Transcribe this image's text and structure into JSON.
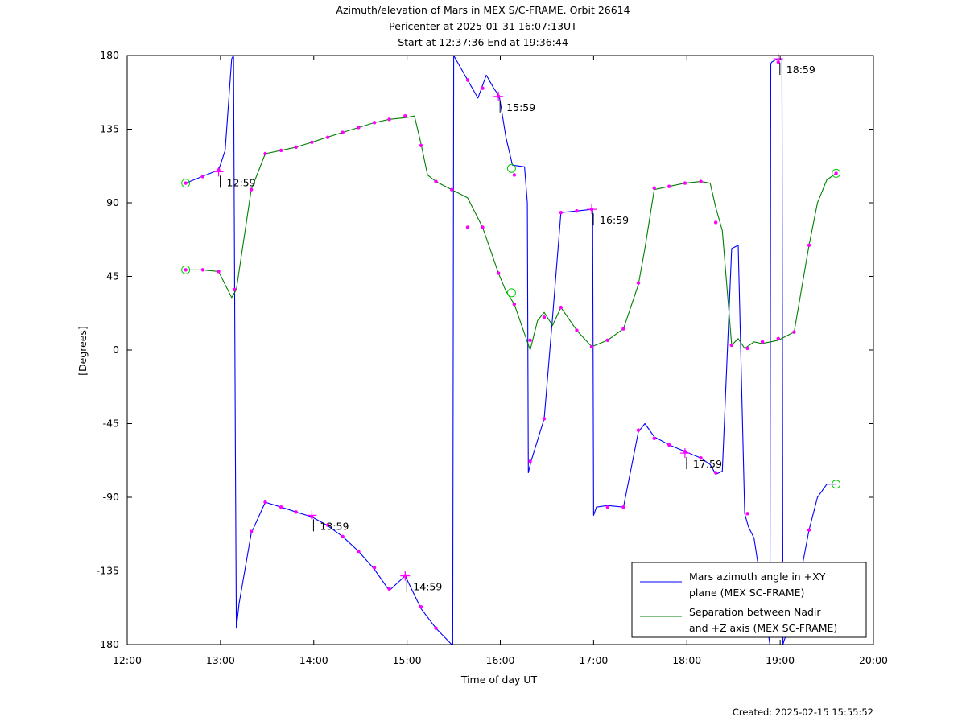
{
  "chart_data": {
    "type": "line",
    "title_lines": [
      "Azimuth/elevation of Mars in MEX S/C-FRAME.  Orbit 26614",
      "Pericenter at 2025-01-31 16:07:13UT",
      "Start at 12:37:36 End at 19:36:44"
    ],
    "xlabel": "Time of day UT",
    "ylabel": "[Degrees]",
    "xlim": [
      12,
      20
    ],
    "ylim": [
      -180,
      180
    ],
    "x_ticks": [
      12,
      13,
      14,
      15,
      16,
      17,
      18,
      19,
      20
    ],
    "x_tick_labels": [
      "12:00",
      "13:00",
      "14:00",
      "15:00",
      "16:00",
      "17:00",
      "18:00",
      "19:00",
      "20:00"
    ],
    "y_ticks": [
      180,
      135,
      90,
      45,
      0,
      -45,
      -90,
      -135,
      -180
    ],
    "y_tick_labels": [
      "180",
      "135",
      "90",
      "45",
      "0",
      "-45",
      "-90",
      "-135",
      "-180"
    ],
    "grid": false,
    "legend_position": "bottom-right",
    "time_annotations": [
      {
        "label": "12:59",
        "x": 12.98,
        "y": 109
      },
      {
        "label": "13:59",
        "x": 13.98,
        "y": -101
      },
      {
        "label": "14:59",
        "x": 14.98,
        "y": -138
      },
      {
        "label": "15:59",
        "x": 15.98,
        "y": 155
      },
      {
        "label": "16:59",
        "x": 16.98,
        "y": 86
      },
      {
        "label": "17:59",
        "x": 17.98,
        "y": -63
      },
      {
        "label": "18:59",
        "x": 18.98,
        "y": 178
      }
    ],
    "series": [
      {
        "name": "Mars azimuth angle in +XY plane (MEX SC-FRAME)",
        "legend_lines": [
          "Mars azimuth angle in +XY",
          "plane (MEX SC-FRAME)"
        ],
        "color": "#0000ff",
        "x": [
          12.627,
          12.8,
          12.98,
          13.05,
          13.12,
          13.14,
          13.16,
          13.17,
          13.2,
          13.33,
          13.48,
          13.65,
          13.81,
          13.98,
          14.14,
          14.31,
          14.48,
          14.65,
          14.81,
          14.98,
          15.15,
          15.31,
          15.48,
          15.49,
          15.5,
          15.65,
          15.76,
          15.85,
          15.93,
          15.99,
          16.06,
          16.13,
          16.26,
          16.29,
          16.3,
          16.33,
          16.47,
          16.56,
          16.65,
          16.82,
          16.99,
          17.0,
          17.03,
          17.15,
          17.32,
          17.48,
          17.55,
          17.65,
          17.81,
          17.98,
          18.15,
          18.25,
          18.31,
          18.38,
          18.48,
          18.55,
          18.62,
          18.66,
          18.72,
          18.8,
          18.89,
          18.9,
          18.91,
          18.97,
          19.02,
          19.03,
          19.04,
          19.1,
          19.22,
          19.31,
          19.4,
          19.5,
          19.6
        ],
        "y": [
          102,
          106,
          110,
          122,
          178,
          180,
          -60,
          -170,
          -155,
          -112,
          -93,
          -96,
          -99,
          -102,
          -107,
          -114,
          -123,
          -134,
          -147,
          -138,
          -158,
          -170,
          -180,
          -180,
          180,
          165,
          154,
          168,
          160,
          155,
          130,
          113,
          112,
          90,
          -75,
          -68,
          -42,
          20,
          84,
          85,
          86,
          -101,
          -96,
          -95,
          -96,
          -50,
          -45,
          -53,
          -58,
          -62,
          -66,
          -70,
          -76,
          -74,
          62,
          64,
          -100,
          -108,
          -115,
          -145,
          -180,
          175,
          176,
          178,
          178,
          -180,
          -178,
          -168,
          -137,
          -110,
          -90,
          -82,
          -82
        ]
      },
      {
        "name": "Separation between Nadir and +Z axis (MEX SC-FRAME)",
        "legend_lines": [
          "Separation between Nadir",
          "and +Z axis (MEX SC-FRAME)"
        ],
        "color": "#008000",
        "x": [
          12.627,
          12.8,
          12.98,
          13.05,
          13.12,
          13.17,
          13.33,
          13.48,
          13.65,
          13.81,
          13.98,
          14.14,
          14.31,
          14.48,
          14.65,
          14.81,
          14.98,
          15.08,
          15.15,
          15.22,
          15.31,
          15.48,
          15.65,
          15.81,
          15.98,
          16.06,
          16.15,
          16.32,
          16.4,
          16.47,
          16.56,
          16.65,
          16.82,
          16.98,
          17.15,
          17.32,
          17.48,
          17.55,
          17.65,
          17.81,
          17.98,
          18.15,
          18.25,
          18.31,
          18.38,
          18.48,
          18.55,
          18.62,
          18.72,
          18.8,
          18.9,
          18.98,
          19.15,
          19.31,
          19.4,
          19.5,
          19.6
        ],
        "y": [
          49,
          49,
          48,
          40,
          32,
          37,
          98,
          120,
          122,
          124,
          127,
          130,
          133,
          136,
          139,
          141,
          142,
          143,
          126,
          107,
          103,
          98,
          93,
          75,
          47,
          36,
          28,
          0,
          18,
          23,
          15,
          26,
          12,
          2,
          6,
          13,
          40,
          62,
          98,
          100,
          102,
          103,
          102,
          87,
          73,
          3,
          7,
          1,
          5,
          4,
          5,
          6,
          11,
          64,
          90,
          104,
          108
        ]
      }
    ],
    "markers": {
      "azimuth_points": [
        [
          12.627,
          102
        ],
        [
          12.81,
          106
        ],
        [
          12.98,
          110
        ],
        [
          13.15,
          37
        ],
        [
          13.33,
          -111
        ],
        [
          13.48,
          -93
        ],
        [
          13.65,
          -96
        ],
        [
          13.81,
          -99
        ],
        [
          13.98,
          -102
        ],
        [
          14.15,
          -107
        ],
        [
          14.31,
          -114
        ],
        [
          14.48,
          -123
        ],
        [
          14.65,
          -133
        ],
        [
          14.81,
          -146
        ],
        [
          14.98,
          -138
        ],
        [
          15.15,
          -157
        ],
        [
          15.31,
          -170
        ],
        [
          15.65,
          165
        ],
        [
          15.81,
          160
        ],
        [
          15.98,
          155
        ],
        [
          16.15,
          107
        ],
        [
          16.32,
          -68
        ],
        [
          16.47,
          -42
        ],
        [
          16.65,
          84
        ],
        [
          16.82,
          85
        ],
        [
          16.98,
          86
        ],
        [
          17.15,
          -96
        ],
        [
          17.32,
          -96
        ],
        [
          17.48,
          -49
        ],
        [
          17.65,
          -54
        ],
        [
          17.81,
          -58
        ],
        [
          17.98,
          -62
        ],
        [
          18.15,
          -66
        ],
        [
          18.31,
          -75
        ],
        [
          18.48,
          3
        ],
        [
          18.65,
          -100
        ],
        [
          18.98,
          176
        ],
        [
          19.31,
          -110
        ]
      ],
      "separation_points": [
        [
          12.627,
          49
        ],
        [
          12.81,
          49
        ],
        [
          12.98,
          48
        ],
        [
          13.33,
          98
        ],
        [
          13.48,
          120
        ],
        [
          13.65,
          122
        ],
        [
          13.81,
          124
        ],
        [
          13.98,
          127
        ],
        [
          14.15,
          130
        ],
        [
          14.31,
          133
        ],
        [
          14.48,
          136
        ],
        [
          14.65,
          139
        ],
        [
          14.81,
          141
        ],
        [
          14.98,
          143
        ],
        [
          15.15,
          125
        ],
        [
          15.31,
          103
        ],
        [
          15.48,
          98
        ],
        [
          15.65,
          75
        ],
        [
          15.81,
          75
        ],
        [
          15.98,
          47
        ],
        [
          16.15,
          28
        ],
        [
          16.32,
          6
        ],
        [
          16.47,
          20
        ],
        [
          16.65,
          26
        ],
        [
          16.82,
          12
        ],
        [
          16.98,
          2
        ],
        [
          17.15,
          6
        ],
        [
          17.32,
          13
        ],
        [
          17.48,
          41
        ],
        [
          17.65,
          99
        ],
        [
          17.81,
          100
        ],
        [
          17.98,
          102
        ],
        [
          18.15,
          103
        ],
        [
          18.31,
          78
        ],
        [
          18.48,
          3
        ],
        [
          18.65,
          1
        ],
        [
          18.81,
          5
        ],
        [
          18.98,
          7
        ],
        [
          19.15,
          11
        ],
        [
          19.31,
          64
        ],
        [
          19.6,
          108
        ]
      ],
      "start_end_circles": [
        [
          12.627,
          102
        ],
        [
          12.627,
          49
        ],
        [
          16.12,
          111
        ],
        [
          16.12,
          35
        ],
        [
          19.6,
          108
        ],
        [
          19.6,
          -82
        ]
      ]
    },
    "marker_colors": {
      "points": "#ff00ff",
      "circles": "#00cc00"
    }
  },
  "footer": {
    "created": "Created: 2025-02-15 15:55:52"
  }
}
